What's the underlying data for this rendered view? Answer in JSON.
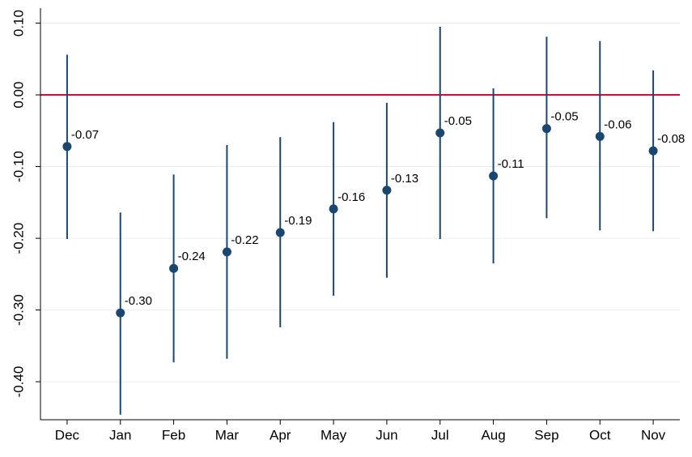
{
  "chart_data": {
    "type": "errorbar",
    "categories": [
      "Dec",
      "Jan",
      "Feb",
      "Mar",
      "Apr",
      "May",
      "Jun",
      "Jul",
      "Aug",
      "Sep",
      "Oct",
      "Nov"
    ],
    "series": [
      {
        "color": "#1a476f",
        "values": [
          -0.072,
          -0.304,
          -0.242,
          -0.219,
          -0.192,
          -0.159,
          -0.133,
          -0.053,
          -0.113,
          -0.047,
          -0.058,
          -0.078
        ],
        "value_labels": [
          "-0.07",
          "-0.30",
          "-0.24",
          "-0.22",
          "-0.19",
          "-0.16",
          "-0.13",
          "-0.05",
          "-0.11",
          "-0.05",
          "-0.06",
          "-0.08"
        ],
        "lower": [
          -0.201,
          -0.446,
          -0.373,
          -0.368,
          -0.324,
          -0.28,
          -0.255,
          -0.201,
          -0.235,
          -0.172,
          -0.189,
          -0.19
        ],
        "upper": [
          0.056,
          -0.164,
          -0.111,
          -0.07,
          -0.059,
          -0.038,
          -0.011,
          0.095,
          0.009,
          0.081,
          0.075,
          0.034
        ]
      }
    ],
    "ylim": [
      -0.453,
      0.121
    ],
    "yticks": [
      {
        "value": 0.1,
        "label": "0.10"
      },
      {
        "value": 0,
        "label": "0.00"
      },
      {
        "value": -0.1,
        "label": "-0.10"
      },
      {
        "value": -0.2,
        "label": "-0.20"
      },
      {
        "value": -0.3,
        "label": "-0.30"
      },
      {
        "value": -0.4,
        "label": "-0.40"
      }
    ],
    "grid": true,
    "reference_line": {
      "value": 0,
      "color": "#c10534"
    }
  }
}
